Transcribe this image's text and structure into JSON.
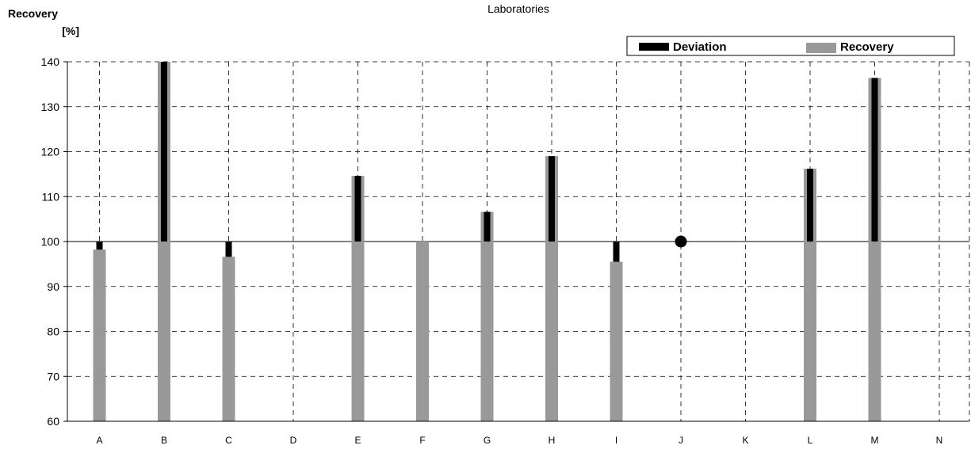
{
  "chart_data": {
    "type": "bar",
    "title": "Laboratories",
    "ylabel_line1": "Recovery",
    "ylabel_line2": "[%]",
    "xlabel": "",
    "reference": 100,
    "ylim": [
      60,
      140
    ],
    "yticks": [
      60,
      70,
      80,
      90,
      100,
      110,
      120,
      130,
      140
    ],
    "grid": true,
    "legend_position": "top-right",
    "categories": [
      "A",
      "B",
      "C",
      "D",
      "E",
      "F",
      "G",
      "H",
      "I",
      "J",
      "K",
      "L",
      "M",
      "N"
    ],
    "series": [
      {
        "name": "Recovery",
        "values": [
          98.2,
          140,
          96.6,
          null,
          114.6,
          100,
          106.6,
          119,
          95.5,
          100,
          null,
          116.2,
          136.4,
          null
        ]
      },
      {
        "name": "Deviation",
        "values": [
          -1.8,
          40,
          -3.4,
          null,
          14.6,
          0,
          6.6,
          19,
          -4.5,
          0,
          null,
          16.2,
          36.4,
          null
        ]
      }
    ],
    "markers": [
      {
        "category": "J",
        "value": 100
      }
    ],
    "colors": {
      "Recovery": "#999999",
      "Deviation": "#000000"
    }
  }
}
